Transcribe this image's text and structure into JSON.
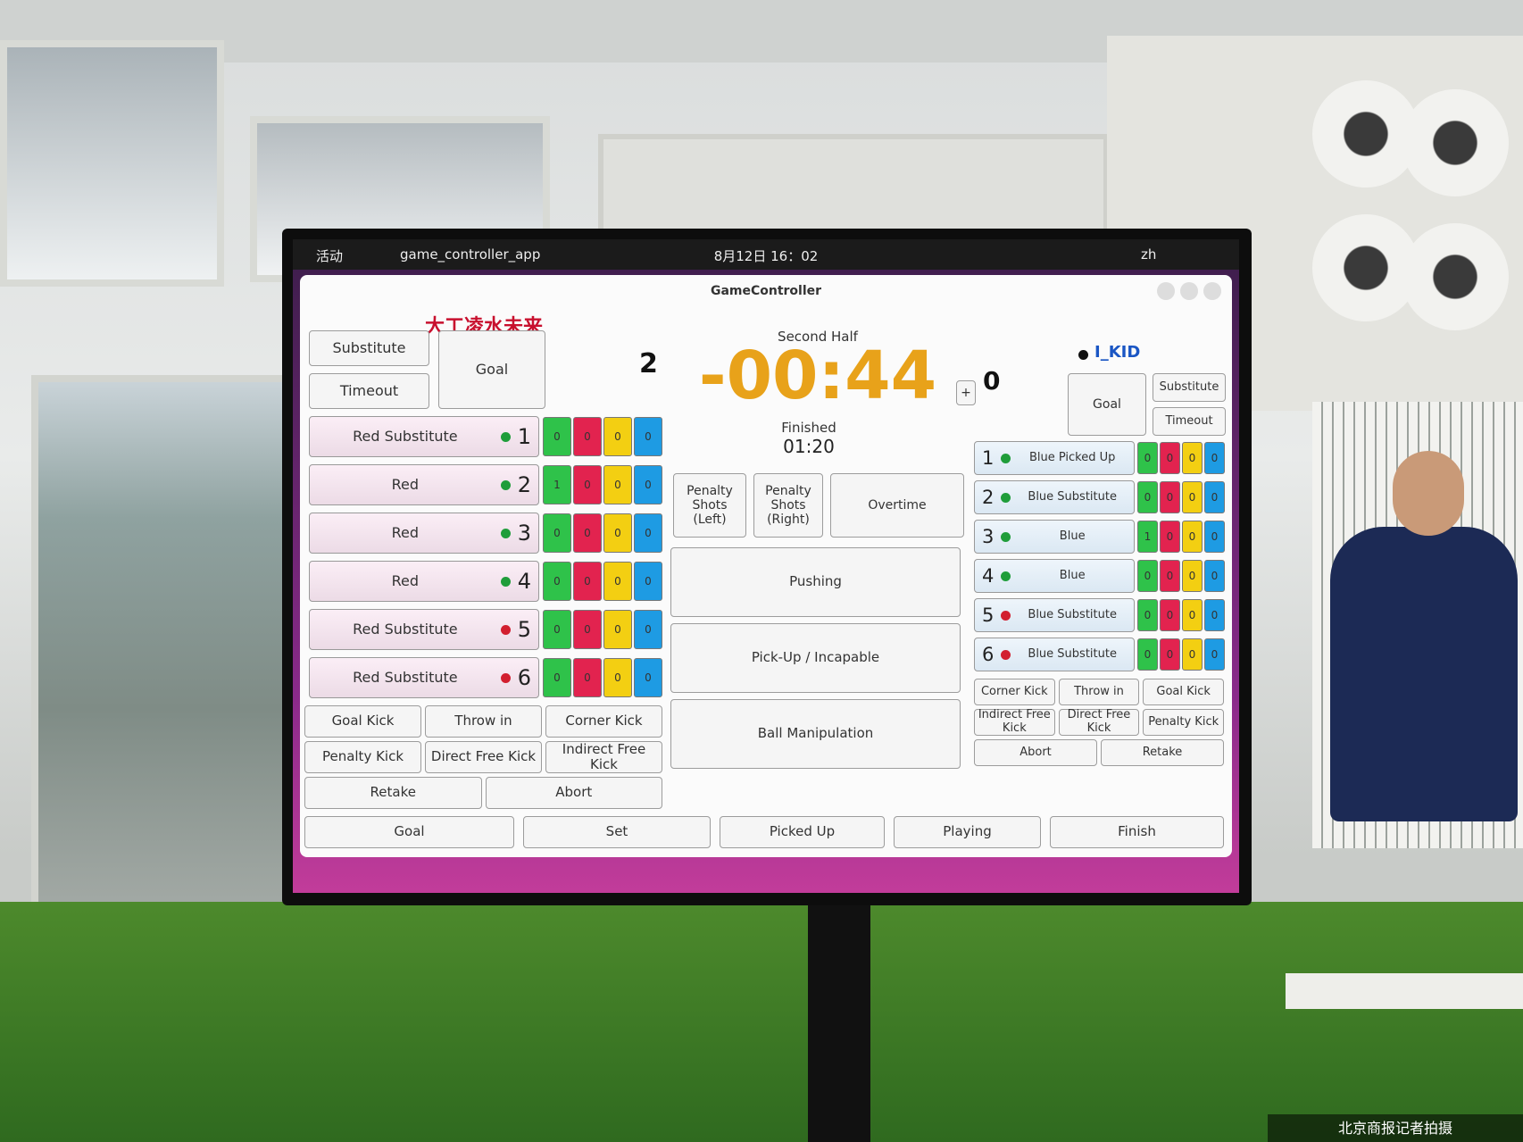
{
  "topbar": {
    "activities": "活动",
    "app": "game_controller_app",
    "clock": "8月12日 16：02",
    "lang": "zh"
  },
  "window": {
    "title": "GameController"
  },
  "left_team": {
    "name": "大工凌水未来",
    "buttons": {
      "substitute": "Substitute",
      "timeout": "Timeout",
      "goal": "Goal"
    },
    "score": 2,
    "players": [
      {
        "label": "Red Substitute",
        "number": 1,
        "dot": "#1f9d3a",
        "penalties": [
          0,
          0,
          0,
          0
        ]
      },
      {
        "label": "Red",
        "number": 2,
        "dot": "#1f9d3a",
        "penalties": [
          1,
          0,
          0,
          0
        ]
      },
      {
        "label": "Red",
        "number": 3,
        "dot": "#1f9d3a",
        "penalties": [
          0,
          0,
          0,
          0
        ]
      },
      {
        "label": "Red",
        "number": 4,
        "dot": "#1f9d3a",
        "penalties": [
          0,
          0,
          0,
          0
        ]
      },
      {
        "label": "Red Substitute",
        "number": 5,
        "dot": "#d21f2f",
        "penalties": [
          0,
          0,
          0,
          0
        ]
      },
      {
        "label": "Red Substitute",
        "number": 6,
        "dot": "#d21f2f",
        "penalties": [
          0,
          0,
          0,
          0
        ]
      }
    ],
    "set_plays": [
      [
        "Goal Kick",
        "Throw in",
        "Corner Kick"
      ],
      [
        "Penalty Kick",
        "Direct Free Kick",
        "Indirect Free Kick"
      ],
      [
        "Retake",
        "Abort"
      ]
    ]
  },
  "center": {
    "half": "Second Half",
    "clock": "-00:44",
    "add": "+",
    "state": "Finished",
    "secondary_clock": "01:20",
    "buttons": {
      "penalty_left": "Penalty Shots (Left)",
      "penalty_right": "Penalty Shots (Right)",
      "overtime": "Overtime"
    },
    "penalties": [
      "Pushing",
      "Pick-Up / Incapable",
      "Ball Manipulation"
    ]
  },
  "right_team": {
    "name": "I_KID",
    "buttons": {
      "goal": "Goal",
      "substitute": "Substitute",
      "timeout": "Timeout"
    },
    "score": 0,
    "players": [
      {
        "label": "Blue Picked Up",
        "number": 1,
        "dot": "#1f9d3a",
        "penalties": [
          0,
          0,
          0,
          0
        ]
      },
      {
        "label": "Blue Substitute",
        "number": 2,
        "dot": "#1f9d3a",
        "penalties": [
          0,
          0,
          0,
          0
        ]
      },
      {
        "label": "Blue",
        "number": 3,
        "dot": "#1f9d3a",
        "penalties": [
          1,
          0,
          0,
          0
        ]
      },
      {
        "label": "Blue",
        "number": 4,
        "dot": "#1f9d3a",
        "penalties": [
          0,
          0,
          0,
          0
        ]
      },
      {
        "label": "Blue Substitute",
        "number": 5,
        "dot": "#d21f2f",
        "penalties": [
          0,
          0,
          0,
          0
        ]
      },
      {
        "label": "Blue Substitute",
        "number": 6,
        "dot": "#d21f2f",
        "penalties": [
          0,
          0,
          0,
          0
        ]
      }
    ],
    "set_plays": [
      [
        "Corner Kick",
        "Throw in",
        "Goal Kick"
      ],
      [
        "Indirect Free Kick",
        "Direct Free Kick",
        "Penalty Kick"
      ],
      [
        "Abort",
        "Retake"
      ]
    ]
  },
  "bottom_buttons": [
    "Goal",
    "Set",
    "Picked Up",
    "Playing",
    "Finish"
  ],
  "watermark": "北京商报记者拍摄"
}
